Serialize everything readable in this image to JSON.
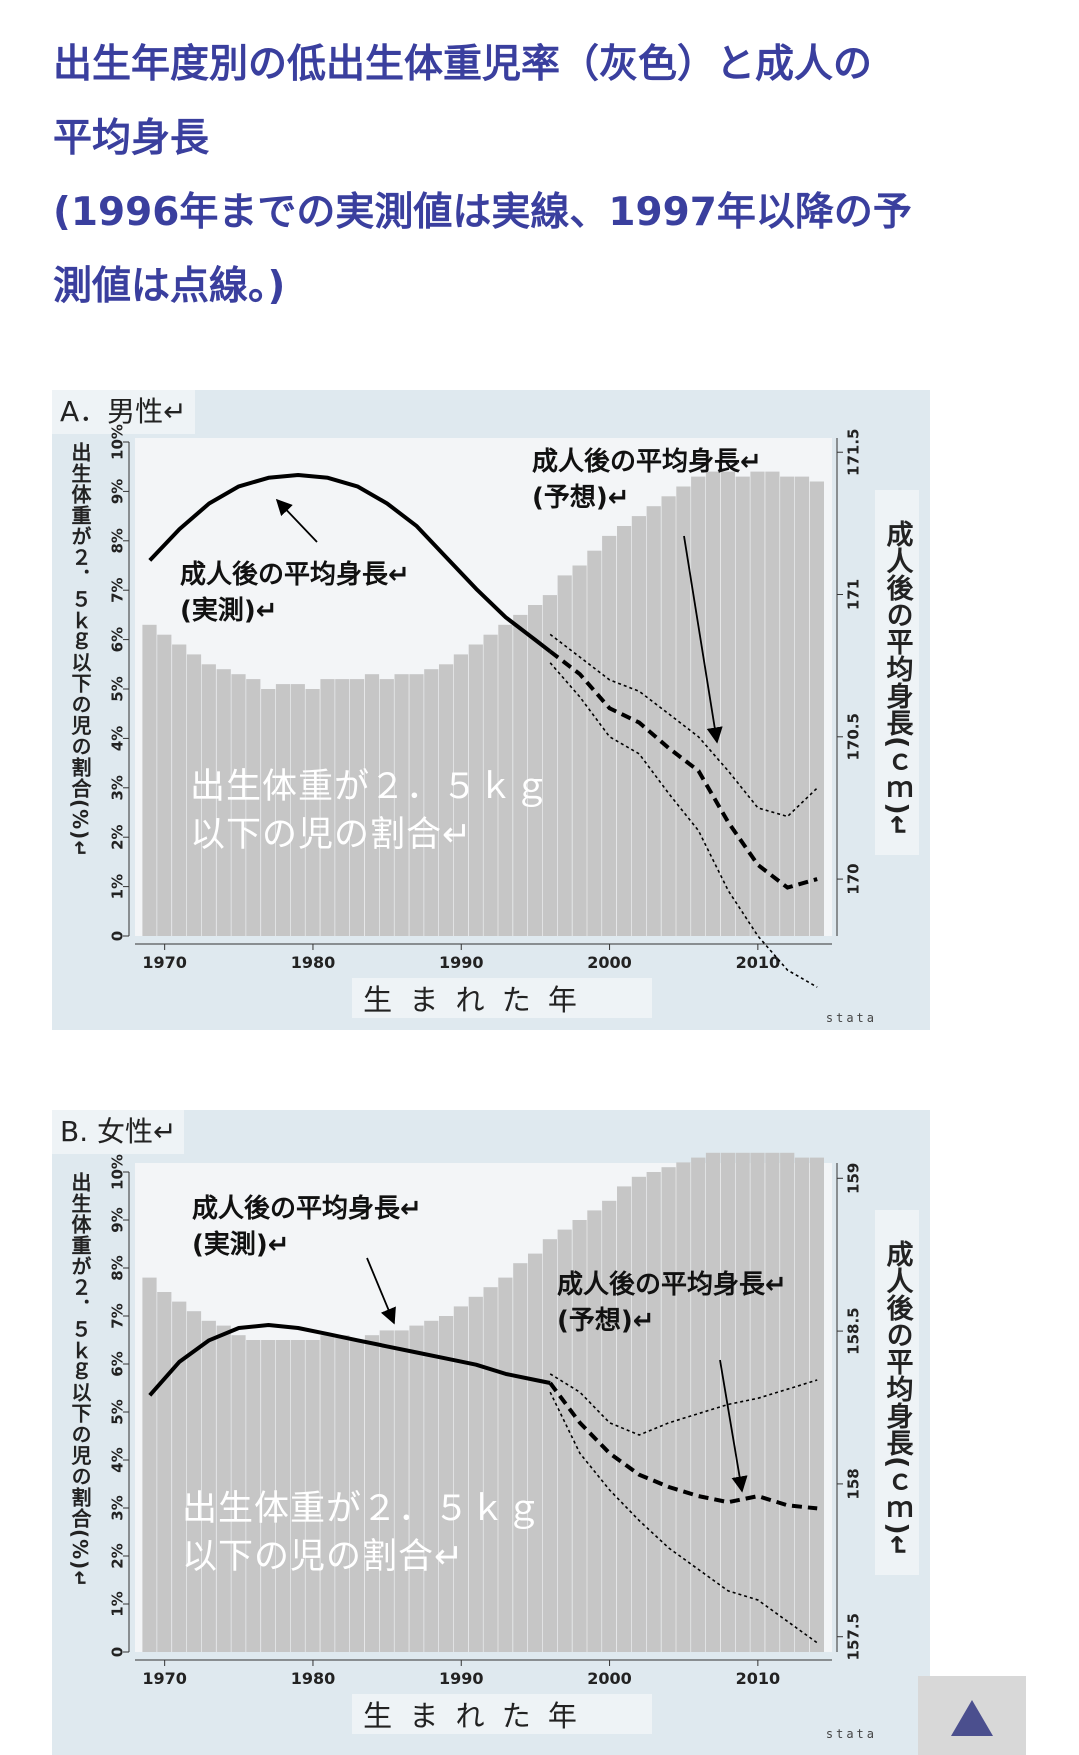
{
  "heading": {
    "lines": [
      "出生年度別の低出生体重児率（灰色）と成人の",
      "平均身長",
      "(1996年までの実測値は実線、1997年以降の予",
      "測値は点線。)"
    ]
  },
  "colors": {
    "heading": "#3a3f9e",
    "panel_bg": "#dfe9ef",
    "plot_bg": "#f3f5f7",
    "bars": "#c6c6c6",
    "lines": "#000000",
    "scroll_button": "#d8d8d8",
    "scroll_arrow": "#4b4f8e"
  },
  "icons": {
    "scroll_top": "up-triangle-icon"
  },
  "chart_data": [
    {
      "panel_label": "A．男性↵",
      "type": "bar+line",
      "title": "",
      "xlabel": "生 ま れ た 年",
      "x_ticks": [
        1970,
        1980,
        1990,
        2000,
        2010
      ],
      "xlim": [
        1968,
        2015
      ],
      "ylabel_left": "出生体重が２．５ｋｇ以下の児の割合(%)↵",
      "y_left_ticks": [
        "0",
        "1%",
        "2%",
        "3%",
        "4%",
        "5%",
        "6%",
        "7%",
        "8%",
        "9%",
        "10%"
      ],
      "ylim_left": [
        0,
        10
      ],
      "ylabel_right": "成人後の平均身長(ｃｍ)↵",
      "y_right_ticks": [
        "170",
        "170.5",
        "171",
        "171.5"
      ],
      "ylim_right": [
        169.8,
        171.55
      ],
      "bar_series": {
        "name": "出生体重が２．５ｋｇ以下の児の割合",
        "x": [
          1969,
          1970,
          1971,
          1972,
          1973,
          1974,
          1975,
          1976,
          1977,
          1978,
          1979,
          1980,
          1981,
          1982,
          1983,
          1984,
          1985,
          1986,
          1987,
          1988,
          1989,
          1990,
          1991,
          1992,
          1993,
          1994,
          1995,
          1996,
          1997,
          1998,
          1999,
          2000,
          2001,
          2002,
          2003,
          2004,
          2005,
          2006,
          2007,
          2008,
          2009,
          2010,
          2011,
          2012,
          2013,
          2014
        ],
        "values": [
          6.3,
          6.1,
          5.9,
          5.7,
          5.5,
          5.4,
          5.3,
          5.2,
          5.0,
          5.1,
          5.1,
          5.0,
          5.2,
          5.2,
          5.2,
          5.3,
          5.2,
          5.3,
          5.3,
          5.4,
          5.5,
          5.7,
          5.9,
          6.1,
          6.3,
          6.5,
          6.7,
          6.9,
          7.3,
          7.5,
          7.8,
          8.1,
          8.3,
          8.5,
          8.7,
          8.9,
          9.1,
          9.3,
          9.4,
          9.4,
          9.3,
          9.4,
          9.4,
          9.3,
          9.3,
          9.2
        ]
      },
      "measured_height": {
        "name": "成人後の平均身長（実測）",
        "x": [
          1969,
          1971,
          1973,
          1975,
          1977,
          1979,
          1981,
          1983,
          1985,
          1987,
          1989,
          1991,
          1993,
          1995,
          1996
        ],
        "values": [
          171.12,
          171.23,
          171.32,
          171.38,
          171.41,
          171.42,
          171.41,
          171.38,
          171.32,
          171.24,
          171.13,
          171.02,
          170.92,
          170.84,
          170.8
        ]
      },
      "projected_height": {
        "name": "成人後の平均身長（予想）",
        "x": [
          1996,
          1998,
          2000,
          2002,
          2004,
          2006,
          2008,
          2010,
          2012,
          2014
        ],
        "mean": [
          170.8,
          170.72,
          170.6,
          170.55,
          170.46,
          170.38,
          170.2,
          170.05,
          169.97,
          170.0
        ],
        "upper": [
          170.86,
          170.78,
          170.7,
          170.66,
          170.58,
          170.5,
          170.38,
          170.25,
          170.22,
          170.32
        ],
        "lower": [
          170.76,
          170.64,
          170.5,
          170.44,
          170.3,
          170.17,
          169.96,
          169.8,
          169.68,
          169.62
        ]
      },
      "annotations": [
        {
          "text_lines": [
            "成人後の平均身長↵",
            "(実測)↵"
          ]
        },
        {
          "text_lines": [
            "成人後の平均身長↵",
            "(予想)↵"
          ]
        },
        {
          "text_lines": [
            "出生体重が２．５ｋｇ",
            "以下の児の割合↵"
          ]
        }
      ],
      "watermark": "stata"
    },
    {
      "panel_label": "B. 女性↵",
      "type": "bar+line",
      "title": "",
      "xlabel": "生 ま れ た 年",
      "x_ticks": [
        1970,
        1980,
        1990,
        2000,
        2010
      ],
      "xlim": [
        1968,
        2015
      ],
      "ylabel_left": "出生体重が２．５ｋｇ以下の児の割合(%)↵",
      "y_left_ticks": [
        "0",
        "1%",
        "2%",
        "3%",
        "4%",
        "5%",
        "6%",
        "7%",
        "8%",
        "9%",
        "10%"
      ],
      "ylim_left": [
        0,
        10
      ],
      "ylabel_right": "成人後の平均身長(ｃｍ)↵",
      "y_right_ticks": [
        "157.5",
        "158",
        "158.5",
        "159"
      ],
      "ylim_right": [
        157.45,
        159.05
      ],
      "bar_series": {
        "name": "出生体重が２．５ｋｇ以下の児の割合",
        "x": [
          1969,
          1970,
          1971,
          1972,
          1973,
          1974,
          1975,
          1976,
          1977,
          1978,
          1979,
          1980,
          1981,
          1982,
          1983,
          1984,
          1985,
          1986,
          1987,
          1988,
          1989,
          1990,
          1991,
          1992,
          1993,
          1994,
          1995,
          1996,
          1997,
          1998,
          1999,
          2000,
          2001,
          2002,
          2003,
          2004,
          2005,
          2006,
          2007,
          2008,
          2009,
          2010,
          2011,
          2012,
          2013,
          2014
        ],
        "values": [
          7.8,
          7.5,
          7.3,
          7.1,
          6.9,
          6.8,
          6.6,
          6.5,
          6.5,
          6.5,
          6.5,
          6.5,
          6.6,
          6.6,
          6.5,
          6.6,
          6.7,
          6.7,
          6.8,
          6.9,
          7.0,
          7.2,
          7.4,
          7.6,
          7.8,
          8.1,
          8.3,
          8.6,
          8.8,
          9.0,
          9.2,
          9.4,
          9.7,
          9.9,
          10.0,
          10.1,
          10.2,
          10.3,
          10.4,
          10.4,
          10.4,
          10.4,
          10.4,
          10.4,
          10.3,
          10.3
        ]
      },
      "measured_height": {
        "name": "成人後の平均身長（実測）",
        "x": [
          1969,
          1971,
          1973,
          1975,
          1977,
          1979,
          1981,
          1983,
          1985,
          1987,
          1989,
          1991,
          1993,
          1995,
          1996
        ],
        "values": [
          158.29,
          158.4,
          158.47,
          158.51,
          158.52,
          158.51,
          158.49,
          158.47,
          158.45,
          158.43,
          158.41,
          158.39,
          158.36,
          158.34,
          158.33
        ]
      },
      "projected_height": {
        "name": "成人後の平均身長（予想）",
        "x": [
          1996,
          1998,
          2000,
          2002,
          2004,
          2006,
          2008,
          2010,
          2012,
          2014
        ],
        "mean": [
          158.33,
          158.2,
          158.1,
          158.03,
          157.99,
          157.96,
          157.94,
          157.96,
          157.93,
          157.92
        ],
        "upper": [
          158.36,
          158.3,
          158.2,
          158.16,
          158.2,
          158.23,
          158.26,
          158.28,
          158.31,
          158.34
        ],
        "lower": [
          158.3,
          158.1,
          157.98,
          157.88,
          157.79,
          157.72,
          157.65,
          157.62,
          157.55,
          157.48
        ]
      },
      "annotations": [
        {
          "text_lines": [
            "成人後の平均身長↵",
            "(実測)↵"
          ]
        },
        {
          "text_lines": [
            "成人後の平均身長↵",
            "(予想)↵"
          ]
        },
        {
          "text_lines": [
            "出生体重が２．５ｋｇ",
            "以下の児の割合↵"
          ]
        }
      ],
      "watermark": "stata"
    }
  ]
}
